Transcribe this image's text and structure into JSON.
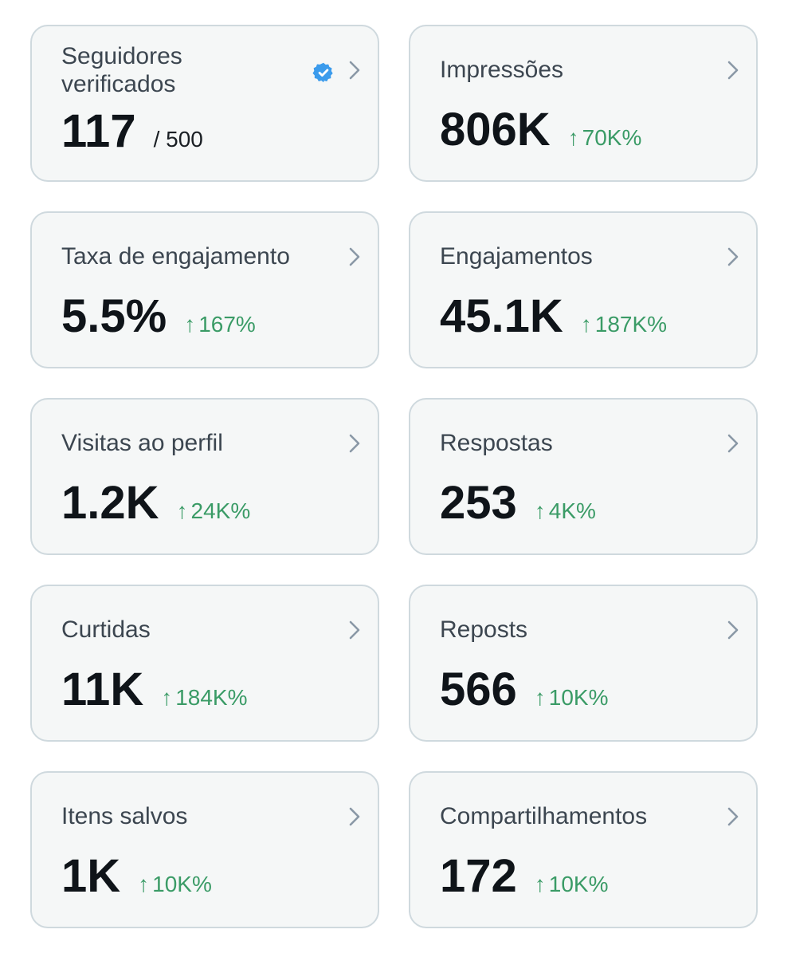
{
  "cards": [
    {
      "title": "Seguidores verificados",
      "value": "117",
      "total": "/ 500",
      "verified_icon": "verified-badge-icon",
      "chevron_icon": "chevron-right-icon"
    },
    {
      "title": "Impressões",
      "value": "806K",
      "change": "70K%",
      "change_arrow": "↑",
      "chevron_icon": "chevron-right-icon"
    },
    {
      "title": "Taxa de engajamento",
      "value": "5.5%",
      "change": "167%",
      "change_arrow": "↑",
      "chevron_icon": "chevron-right-icon"
    },
    {
      "title": "Engajamentos",
      "value": "45.1K",
      "change": "187K%",
      "change_arrow": "↑",
      "chevron_icon": "chevron-right-icon"
    },
    {
      "title": "Visitas ao perfil",
      "value": "1.2K",
      "change": "24K%",
      "change_arrow": "↑",
      "chevron_icon": "chevron-right-icon"
    },
    {
      "title": "Respostas",
      "value": "253",
      "change": "4K%",
      "change_arrow": "↑",
      "chevron_icon": "chevron-right-icon"
    },
    {
      "title": "Curtidas",
      "value": "11K",
      "change": "184K%",
      "change_arrow": "↑",
      "chevron_icon": "chevron-right-icon"
    },
    {
      "title": "Reposts",
      "value": "566",
      "change": "10K%",
      "change_arrow": "↑",
      "chevron_icon": "chevron-right-icon"
    },
    {
      "title": "Itens salvos",
      "value": "1K",
      "change": "10K%",
      "change_arrow": "↑",
      "chevron_icon": "chevron-right-icon"
    },
    {
      "title": "Compartilhamentos",
      "value": "172",
      "change": "10K%",
      "change_arrow": "↑",
      "chevron_icon": "chevron-right-icon"
    }
  ],
  "colors": {
    "card_background": "#f5f7f7",
    "card_border": "#cfd9de",
    "title_text": "#3c4650",
    "value_text": "#0f1419",
    "positive_change": "#3a9b66",
    "chevron": "#8a98a6",
    "verified_badge": "#3b9bec"
  }
}
